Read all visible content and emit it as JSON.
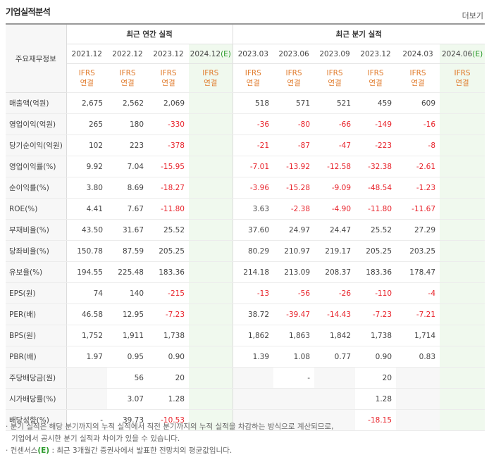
{
  "title": "기업실적분석",
  "more_link": "더보기",
  "header": {
    "row_label": "주요재무정보",
    "annual_label": "최근 연간 실적",
    "quarter_label": "최근 분기 실적",
    "annual_periods": [
      "2021.12",
      "2022.12",
      "2023.12",
      "2024.12"
    ],
    "quarter_periods": [
      "2023.03",
      "2023.06",
      "2023.09",
      "2023.12",
      "2024.03",
      "2024.06"
    ],
    "estimate_suffix": "(E)",
    "ifrs_line1": "IFRS",
    "ifrs_line2": "연결"
  },
  "rows": [
    {
      "label": "매출액(억원)",
      "annual": [
        "2,675",
        "2,562",
        "2,069",
        ""
      ],
      "quarter": [
        "518",
        "571",
        "521",
        "459",
        "609",
        ""
      ]
    },
    {
      "label": "영업이익(억원)",
      "annual": [
        "265",
        "180",
        "-330",
        ""
      ],
      "quarter": [
        "-36",
        "-80",
        "-66",
        "-149",
        "-16",
        ""
      ]
    },
    {
      "label": "당기순이익(억원)",
      "annual": [
        "102",
        "223",
        "-378",
        ""
      ],
      "quarter": [
        "-21",
        "-87",
        "-47",
        "-223",
        "-8",
        ""
      ]
    },
    {
      "label": "영업이익률(%)",
      "annual": [
        "9.92",
        "7.04",
        "-15.95",
        ""
      ],
      "quarter": [
        "-7.01",
        "-13.92",
        "-12.58",
        "-32.38",
        "-2.61",
        ""
      ]
    },
    {
      "label": "순이익률(%)",
      "annual": [
        "3.80",
        "8.69",
        "-18.27",
        ""
      ],
      "quarter": [
        "-3.96",
        "-15.28",
        "-9.09",
        "-48.54",
        "-1.23",
        ""
      ]
    },
    {
      "label": "ROE(%)",
      "annual": [
        "4.41",
        "7.67",
        "-11.80",
        ""
      ],
      "quarter": [
        "3.63",
        "-2.38",
        "-4.90",
        "-11.80",
        "-11.67",
        ""
      ]
    },
    {
      "label": "부채비율(%)",
      "annual": [
        "43.50",
        "31.67",
        "25.52",
        ""
      ],
      "quarter": [
        "37.60",
        "24.97",
        "24.47",
        "25.52",
        "27.29",
        ""
      ]
    },
    {
      "label": "당좌비율(%)",
      "annual": [
        "150.78",
        "87.59",
        "205.25",
        ""
      ],
      "quarter": [
        "80.29",
        "210.97",
        "219.17",
        "205.25",
        "203.25",
        ""
      ]
    },
    {
      "label": "유보율(%)",
      "annual": [
        "194.55",
        "225.48",
        "183.36",
        ""
      ],
      "quarter": [
        "214.18",
        "213.09",
        "208.37",
        "183.36",
        "178.47",
        ""
      ]
    },
    {
      "label": "EPS(원)",
      "annual": [
        "74",
        "140",
        "-215",
        ""
      ],
      "quarter": [
        "-13",
        "-56",
        "-26",
        "-110",
        "-4",
        ""
      ]
    },
    {
      "label": "PER(배)",
      "annual": [
        "46.58",
        "12.95",
        "-7.23",
        ""
      ],
      "quarter": [
        "38.72",
        "-39.47",
        "-14.43",
        "-7.23",
        "-7.21",
        ""
      ]
    },
    {
      "label": "BPS(원)",
      "annual": [
        "1,752",
        "1,911",
        "1,738",
        ""
      ],
      "quarter": [
        "1,862",
        "1,863",
        "1,842",
        "1,738",
        "1,714",
        ""
      ]
    },
    {
      "label": "PBR(배)",
      "annual": [
        "1.97",
        "0.95",
        "0.90",
        ""
      ],
      "quarter": [
        "1.39",
        "1.08",
        "0.77",
        "0.90",
        "0.83",
        ""
      ]
    },
    {
      "label": "주당배당금(원)",
      "annual": [
        "",
        "56",
        "20",
        ""
      ],
      "quarter": [
        "",
        "-",
        "",
        "20",
        "",
        ""
      ]
    },
    {
      "label": "시가배당률(%)",
      "annual": [
        "",
        "3.07",
        "1.28",
        ""
      ],
      "quarter": [
        "",
        "",
        "",
        "1.28",
        "",
        ""
      ]
    },
    {
      "label": "배당성향(%)",
      "annual": [
        "-",
        "39.73",
        "-10.53",
        ""
      ],
      "quarter": [
        "",
        "",
        "",
        "-18.15",
        "",
        ""
      ]
    }
  ],
  "notes": {
    "line1": "분기 실적은 해당 분기까지의 누적 실적에서 직전 분기까지의 누적 실적을 차감하는 방식으로 계산되므로,",
    "line2": "기업에서 공시한 분기 실적과 차이가 있을 수 있습니다.",
    "line3_prefix": "컨센서스",
    "line3_mark": "(E)",
    "line3_suffix": ": 최근 3개월간 증권사에서 발표한 전망치의 평균값입니다."
  }
}
